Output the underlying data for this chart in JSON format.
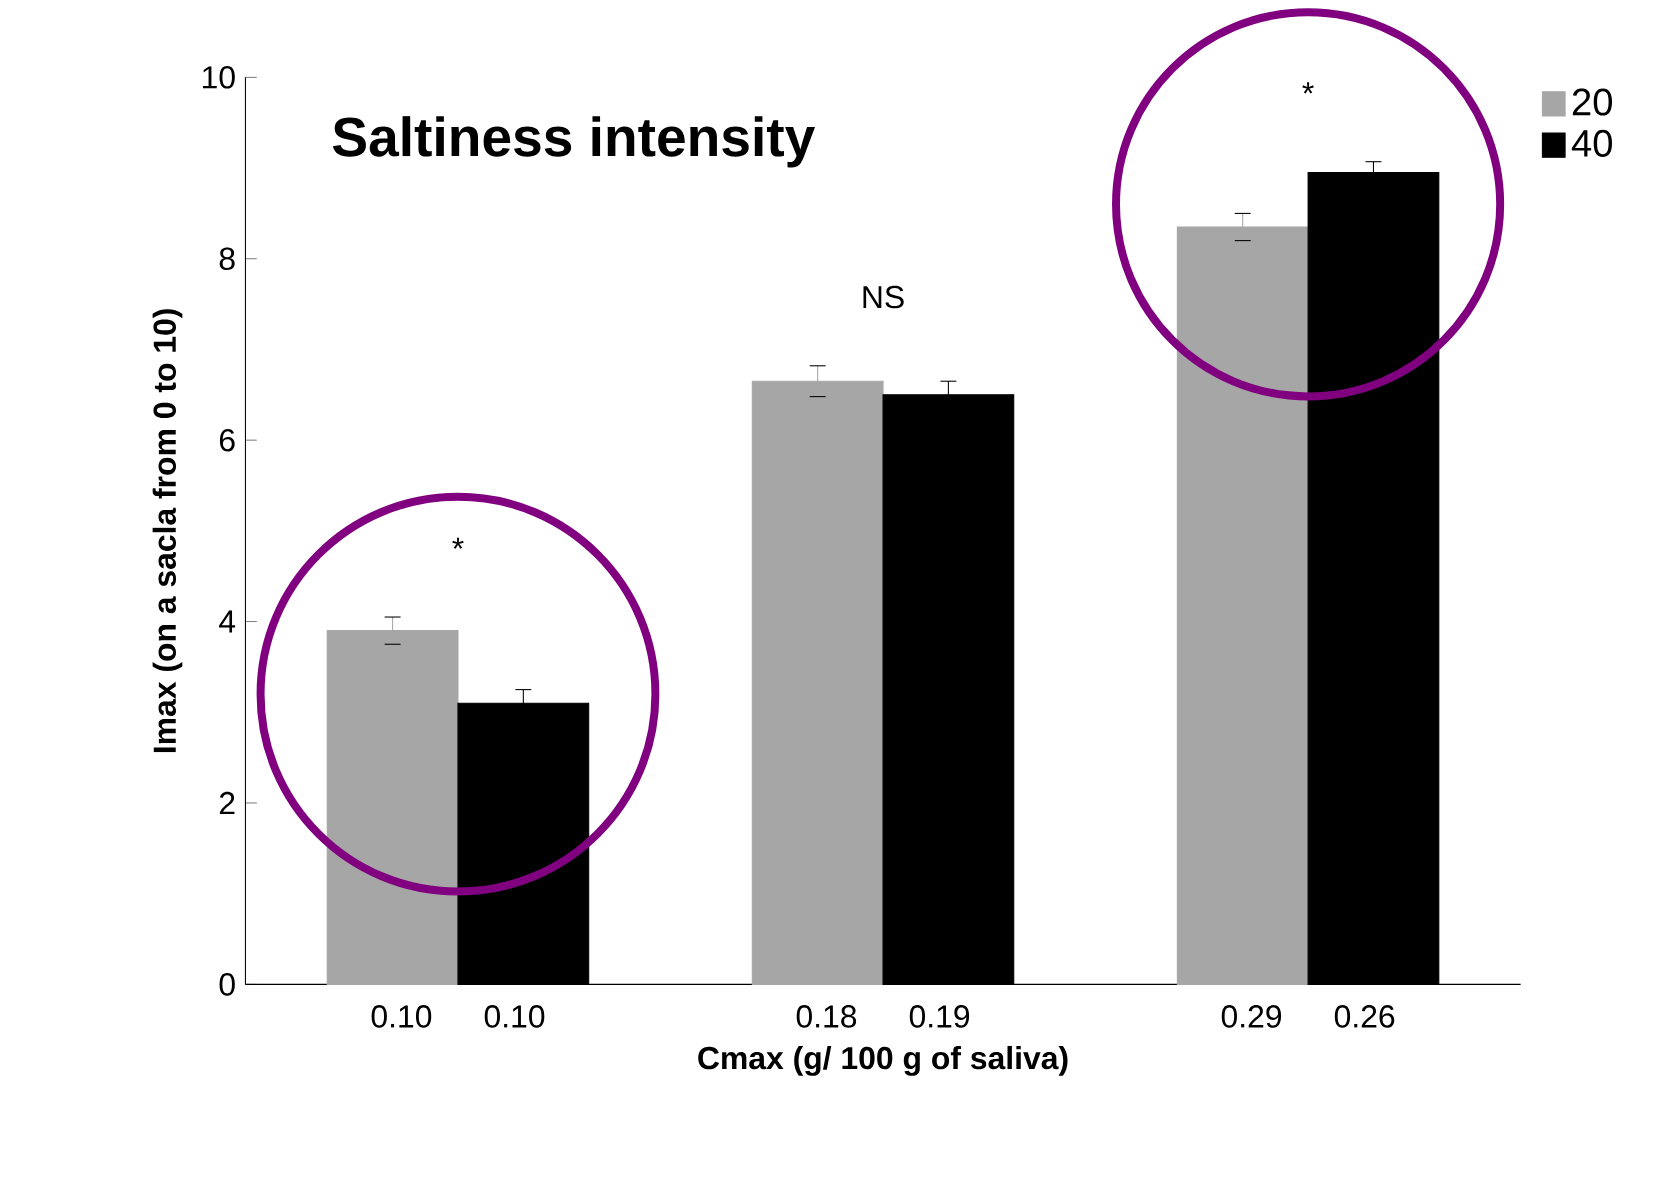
{
  "chart_data": {
    "type": "bar",
    "title": "Saltiness intensity",
    "xlabel": "Cmax (g/ 100 g of saliva)",
    "ylabel": "Imax (on a sacla from 0 to 10)",
    "categories": [
      "0.10 0.10",
      "0.18 0.19",
      "0.29 0.26"
    ],
    "series": [
      {
        "name": "20",
        "color": "#a6a6a6",
        "values": [
          3.9,
          6.65,
          8.35
        ],
        "errors": [
          0.15,
          0.17,
          0.15
        ]
      },
      {
        "name": "40",
        "color": "#000000",
        "values": [
          3.1,
          6.5,
          8.95
        ],
        "errors": [
          0.15,
          0.15,
          0.12
        ]
      }
    ],
    "ylim": [
      0,
      10
    ],
    "yticks": [
      0,
      2,
      4,
      6,
      8,
      10
    ],
    "grid": false,
    "legend": "top right",
    "annotations": [
      "*",
      "NS",
      "*"
    ]
  }
}
